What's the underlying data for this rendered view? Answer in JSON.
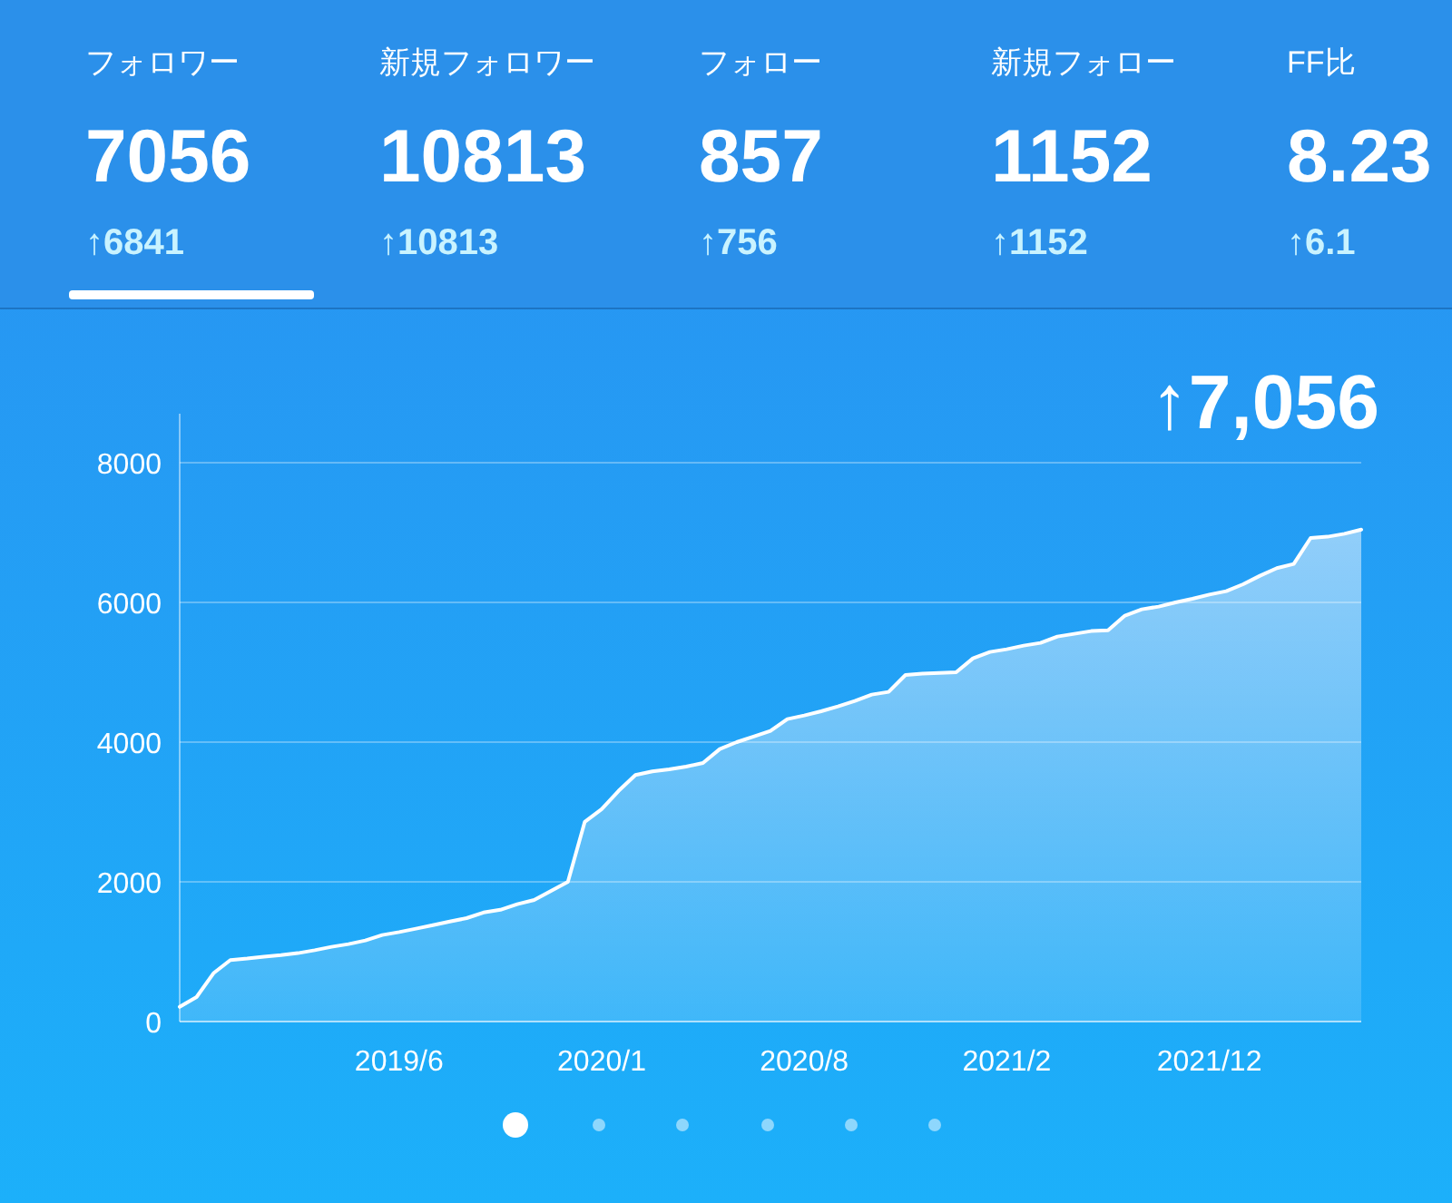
{
  "chart_data": [
    {
      "type": "other",
      "annotations": [
        "フォロワー",
        "7056",
        "↑6841",
        "新規フォロワー",
        "10813",
        "↑10813",
        "フォロー",
        "857",
        "↑756",
        "新規フォロー",
        "1152",
        "↑1152",
        "FF比",
        "8.23",
        "↑6.1"
      ]
    },
    {
      "type": "area",
      "annotations": [
        "↑7,056"
      ],
      "categories": [
        null,
        null,
        null,
        null,
        null,
        null,
        null,
        null,
        null,
        null,
        null,
        null,
        null,
        "2019/6",
        null,
        null,
        null,
        null,
        null,
        null,
        null,
        null,
        null,
        null,
        null,
        "2020/1",
        null,
        null,
        null,
        null,
        null,
        null,
        null,
        null,
        null,
        null,
        null,
        "2020/8",
        null,
        null,
        null,
        null,
        null,
        null,
        null,
        null,
        null,
        null,
        null,
        "2021/2",
        null,
        null,
        null,
        null,
        null,
        null,
        null,
        null,
        null,
        null,
        null,
        "2021/12",
        null,
        null,
        null,
        null,
        null,
        null,
        null,
        null,
        null
      ],
      "series": [
        {
          "color": "#ffffff",
          "values": [
            210,
            350,
            690,
            880,
            900,
            930,
            950,
            980,
            1020,
            1070,
            1110,
            1160,
            1240,
            1280,
            1330,
            1380,
            1430,
            1480,
            1560,
            1600,
            1680,
            1740,
            1870,
            2000,
            2860,
            3040,
            3300,
            3530,
            3580,
            3610,
            3650,
            3700,
            3900,
            4000,
            4080,
            4160,
            4330,
            4380,
            4440,
            4510,
            4590,
            4680,
            4720,
            4960,
            4980,
            4990,
            5000,
            5200,
            5290,
            5330,
            5380,
            5420,
            5510,
            5550,
            5590,
            5600,
            5810,
            5900,
            5940,
            6000,
            6050,
            6110,
            6160,
            6260,
            6380,
            6490,
            6550,
            6920,
            6940,
            6980,
            7040
          ]
        }
      ],
      "ylim": [
        0,
        8700
      ],
      "yticks": [
        0,
        2000,
        4000,
        6000,
        8000
      ],
      "grid": "y"
    }
  ]
}
